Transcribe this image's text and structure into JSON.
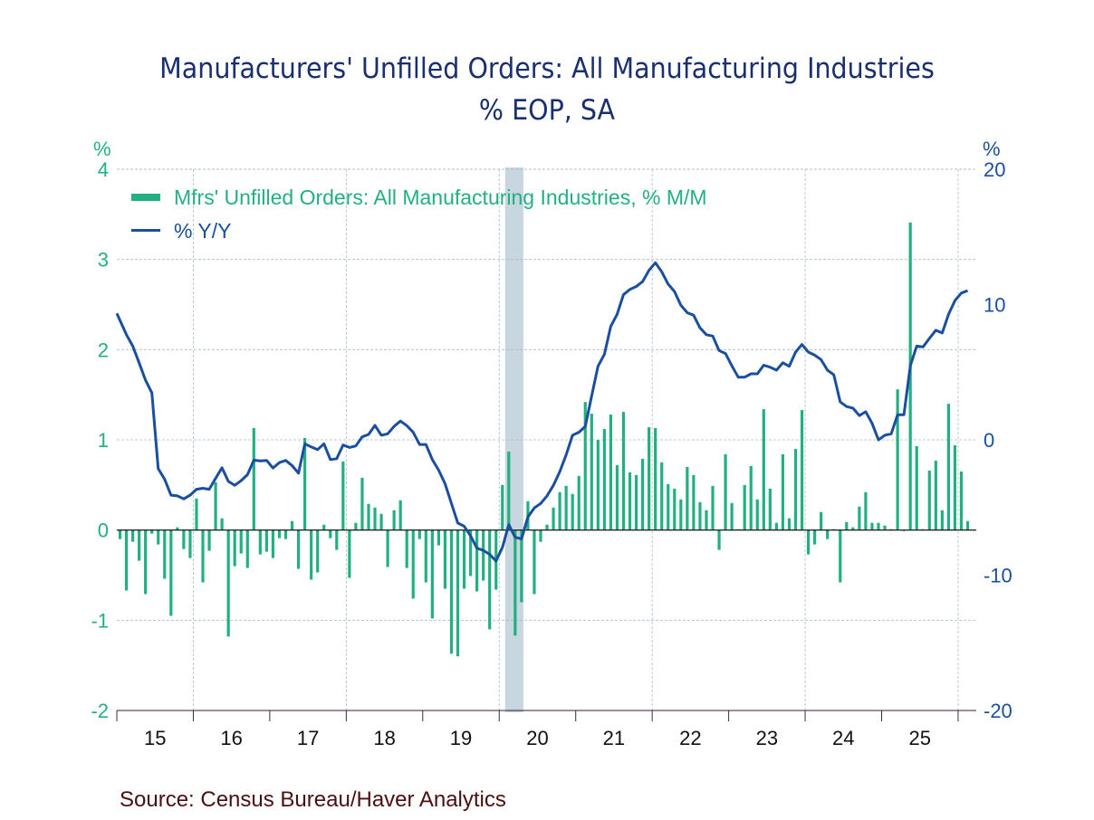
{
  "chart_data": {
    "type": "bar+line",
    "title": "Manufacturers' Unfilled Orders: All Manufacturing Industries",
    "subtitle": "%   EOP, SA",
    "source": "Source:  Census Bureau/Haver Analytics",
    "left_axis": {
      "label": "%",
      "ylim": [
        -2,
        4
      ],
      "ticks": [
        "4",
        "3",
        "2",
        "1",
        "0",
        "-1",
        "-2"
      ],
      "tick_values": [
        4,
        3,
        2,
        1,
        0,
        -1,
        -2
      ]
    },
    "right_axis": {
      "label": "%",
      "ylim": [
        -20,
        20
      ],
      "ticks": [
        "20",
        "10",
        "0",
        "-10",
        "-20"
      ],
      "tick_values": [
        20,
        10,
        0,
        -10,
        -20
      ]
    },
    "x_axis": {
      "start": "2015-01",
      "end": "2026-02",
      "tick_labels": [
        "15",
        "16",
        "17",
        "18",
        "19",
        "20",
        "21",
        "22",
        "23",
        "24",
        "25"
      ]
    },
    "grid": true,
    "legend_position": "top-left",
    "recession_shading": {
      "start": "2020-02",
      "end": "2020-04"
    },
    "colors": {
      "bar": "#22b080",
      "line": "#1a4fa0",
      "shade": "#c8d6e0",
      "title": "#1a2f6e",
      "source": "#4a1010"
    },
    "series": [
      {
        "name": "Mfrs' Unfilled Orders: All Manufacturing Industries, % M/M",
        "type": "bar",
        "axis": "left",
        "values": [
          -0.1,
          -0.67,
          -0.13,
          -0.34,
          -0.71,
          -0.04,
          -0.16,
          -0.54,
          -0.95,
          0.03,
          -0.21,
          -0.31,
          0.35,
          -0.58,
          -0.23,
          0.53,
          0.13,
          -1.18,
          -0.4,
          -0.26,
          -0.42,
          1.13,
          -0.27,
          -0.24,
          -0.31,
          -0.09,
          -0.1,
          0.1,
          -0.43,
          1.02,
          -0.55,
          -0.47,
          0.06,
          -0.09,
          -0.22,
          0.76,
          -0.53,
          0.08,
          0.58,
          0.29,
          0.25,
          0.18,
          -0.41,
          0.22,
          0.33,
          -0.42,
          -0.76,
          -0.1,
          -0.58,
          -0.98,
          -0.17,
          -0.65,
          -1.37,
          -1.4,
          -0.65,
          -0.51,
          -0.68,
          -0.56,
          -1.1,
          -0.66,
          0.5,
          0.87,
          -1.17,
          -0.8,
          0.32,
          -0.71,
          -0.13,
          0.06,
          0.25,
          0.42,
          0.49,
          0.4,
          0.6,
          1.42,
          1.29,
          1.0,
          1.12,
          1.28,
          0.72,
          1.31,
          0.64,
          0.61,
          0.79,
          1.14,
          1.13,
          0.75,
          0.51,
          0.46,
          0.34,
          0.7,
          0.61,
          0.31,
          0.22,
          0.49,
          -0.22,
          0.84,
          0.3,
          0.01,
          0.5,
          0.71,
          0.34,
          1.34,
          0.46,
          0.08,
          0.84,
          0.13,
          0.9,
          1.33,
          -0.27,
          -0.16,
          0.2,
          -0.1,
          0.01,
          -0.58,
          0.09,
          0.03,
          0.26,
          0.42,
          0.08,
          0.08,
          0.05,
          0.01,
          1.56,
          -0.01,
          3.41,
          0.93,
          0.01,
          0.66,
          0.77,
          0.22,
          1.4,
          0.94,
          0.65,
          0.1
        ]
      },
      {
        "name": "% Y/Y",
        "type": "line",
        "axis": "right",
        "values": [
          9.35,
          7.77,
          6.93,
          5.7,
          4.41,
          3.47,
          -2.13,
          -2.91,
          -4.09,
          -4.14,
          -4.36,
          -4.09,
          -3.65,
          -3.58,
          -3.65,
          -2.84,
          -2.06,
          -3.07,
          -3.36,
          -3.02,
          -2.57,
          -1.5,
          -1.56,
          -1.52,
          -2.08,
          -1.68,
          -1.52,
          -1.9,
          -2.46,
          -0.29,
          -0.52,
          -0.72,
          -0.29,
          -1.46,
          -1.39,
          -0.38,
          -0.56,
          -0.45,
          0.22,
          0.4,
          1.07,
          0.34,
          0.45,
          1.0,
          1.39,
          1.05,
          0.56,
          -0.34,
          -0.34,
          -1.46,
          -2.24,
          -3.24,
          -4.7,
          -6.15,
          -6.38,
          -7.09,
          -8.01,
          -8.17,
          -8.46,
          -8.95,
          -7.94,
          -6.26,
          -7.2,
          -7.32,
          -5.7,
          -5.03,
          -4.7,
          -4.14,
          -3.36,
          -2.35,
          -1.12,
          0.34,
          0.56,
          1.0,
          3.24,
          5.44,
          6.33,
          8.39,
          9.28,
          10.74,
          11.12,
          11.34,
          11.7,
          12.53,
          13.09,
          12.42,
          11.52,
          10.96,
          9.95,
          9.4,
          9.21,
          8.28,
          7.77,
          7.67,
          6.6,
          6.38,
          5.48,
          4.63,
          4.63,
          4.88,
          4.88,
          5.52,
          5.37,
          5.15,
          5.7,
          5.44,
          6.49,
          7.05,
          6.49,
          6.26,
          5.93,
          5.15,
          4.81,
          2.8,
          2.46,
          2.35,
          1.79,
          2.08,
          1.23,
          0.0,
          0.34,
          0.45,
          1.86,
          1.86,
          5.48,
          6.93,
          6.87,
          7.5,
          8.1,
          7.9,
          9.28,
          10.29,
          10.85,
          11.03
        ]
      }
    ]
  }
}
